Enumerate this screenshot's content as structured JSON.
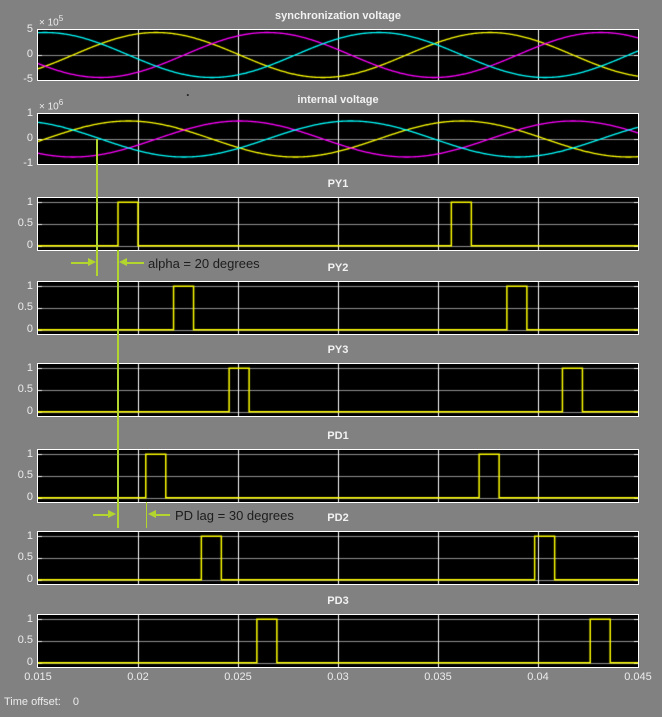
{
  "figure": {
    "background": "#818181",
    "plot_bg": "#000000",
    "frame_color": "#ffffff",
    "grid_vertical_color": "#ffffff",
    "grid_horizontal_color": "#8f8f8f",
    "edge_tick_color": "#ffffff",
    "annotation_color": "#b2d62e",
    "label_color": "#ececec",
    "annotation_text_color": "#1c1c1c"
  },
  "x_axis": {
    "range": [
      0.015,
      0.045
    ],
    "tick_labels": [
      "0.015",
      "0.02",
      "0.025",
      "0.03",
      "0.035",
      "0.04",
      "0.045"
    ],
    "gridline_times": [
      0.02,
      0.025,
      0.03,
      0.035,
      0.04
    ]
  },
  "footer": {
    "label": "Time offset:",
    "value": "0"
  },
  "annotations": {
    "alpha": {
      "text": "alpha = 20 degrees"
    },
    "pd_lag": {
      "text": "PD lag = 30 degrees"
    },
    "stray_dot": "."
  },
  "chart_data": [
    {
      "type": "line",
      "title": "synchronization voltage",
      "exp_base": "× 10",
      "exp_power": "5",
      "yticks": [
        "5",
        "0",
        "-5"
      ],
      "ylim": [
        -500000,
        500000
      ],
      "freq_hz": 60,
      "series": [
        {
          "name": "phase-a-yellow",
          "color": "#ffff00",
          "amplitude": 450000,
          "zero_rising_t": 0.01675
        },
        {
          "name": "phase-b-magenta",
          "color": "#ff00ff",
          "amplitude": 450000,
          "zero_rising_t": 0.022306
        },
        {
          "name": "phase-c-cyan",
          "color": "#00ffff",
          "amplitude": 450000,
          "zero_rising_t": 0.027861
        }
      ]
    },
    {
      "type": "line",
      "title": "internal voltage",
      "exp_base": "× 10",
      "exp_power": "6",
      "yticks": [
        "1",
        "0",
        "-1"
      ],
      "ylim": [
        -1000000,
        1000000
      ],
      "freq_hz": 60,
      "series": [
        {
          "name": "phase-a-yellow",
          "color": "#ffff00",
          "amplitude": 720000,
          "zero_rising_t": 0.015361
        },
        {
          "name": "phase-b-magenta",
          "color": "#ff00ff",
          "amplitude": 720000,
          "zero_rising_t": 0.020917
        },
        {
          "name": "phase-c-cyan",
          "color": "#00ffff",
          "amplitude": 720000,
          "zero_rising_t": 0.026472
        }
      ]
    },
    {
      "type": "pulse",
      "title": "PY1",
      "yticks": [
        "1",
        "0.5",
        "0"
      ],
      "ylim": [
        -0.1,
        1.1
      ],
      "color": "#ffff00",
      "pulse_width": 0.001,
      "pulse_starts": [
        0.019,
        0.035667
      ]
    },
    {
      "type": "pulse",
      "title": "PY2",
      "yticks": [
        "1",
        "0.5",
        "0"
      ],
      "ylim": [
        -0.1,
        1.1
      ],
      "color": "#ffff00",
      "pulse_width": 0.001,
      "pulse_starts": [
        0.021778,
        0.038444
      ]
    },
    {
      "type": "pulse",
      "title": "PY3",
      "yticks": [
        "1",
        "0.5",
        "0"
      ],
      "ylim": [
        -0.1,
        1.1
      ],
      "color": "#ffff00",
      "pulse_width": 0.001,
      "pulse_starts": [
        0.024556,
        0.041222
      ]
    },
    {
      "type": "pulse",
      "title": "PD1",
      "yticks": [
        "1",
        "0.5",
        "0"
      ],
      "ylim": [
        -0.1,
        1.1
      ],
      "color": "#ffff00",
      "pulse_width": 0.001,
      "pulse_starts": [
        0.020389,
        0.037056
      ]
    },
    {
      "type": "pulse",
      "title": "PD2",
      "yticks": [
        "1",
        "0.5",
        "0"
      ],
      "ylim": [
        -0.1,
        1.1
      ],
      "color": "#ffff00",
      "pulse_width": 0.001,
      "pulse_starts": [
        0.023167,
        0.039833
      ]
    },
    {
      "type": "pulse",
      "title": "PD3",
      "yticks": [
        "1",
        "0.5",
        "0"
      ],
      "ylim": [
        -0.1,
        1.1
      ],
      "color": "#ffff00",
      "pulse_width": 0.001,
      "pulse_starts": [
        0.025944,
        0.042611
      ]
    }
  ]
}
